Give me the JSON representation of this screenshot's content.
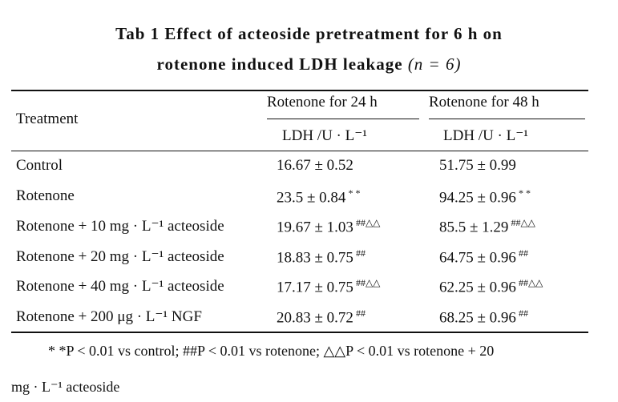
{
  "title": {
    "line1": "Tab 1   Effect of acteoside pretreatment for 6 h on",
    "line2_text": "rotenone induced LDH leakage",
    "line2_n": "(n = 6)"
  },
  "table": {
    "header": {
      "treatment": "Treatment",
      "col1": "Rotenone for 24 h",
      "col2": "Rotenone for 48 h",
      "unit1": "LDH /U · L⁻¹",
      "unit2": "LDH /U · L⁻¹"
    },
    "rows": [
      {
        "label": "Control",
        "c1": "16.67 ± 0.52",
        "m1": "",
        "c2": "51.75 ± 0.99",
        "m2": ""
      },
      {
        "label": "Rotenone",
        "c1": "23.5 ± 0.84",
        "m1": "* *",
        "c2": "94.25 ± 0.96",
        "m2": "* *"
      },
      {
        "label": "Rotenone + 10 mg · L⁻¹ acteoside",
        "c1": "19.67 ± 1.03",
        "m1": "##△△",
        "c2": "85.5 ± 1.29",
        "m2": "##△△"
      },
      {
        "label": "Rotenone + 20 mg · L⁻¹ acteoside",
        "c1": "18.83 ± 0.75",
        "m1": "##",
        "c2": "64.75 ± 0.96",
        "m2": "##"
      },
      {
        "label": "Rotenone + 40 mg · L⁻¹ acteoside",
        "c1": "17.17 ± 0.75",
        "m1": "##△△",
        "c2": "62.25 ± 0.96",
        "m2": "##△△"
      },
      {
        "label": "Rotenone + 200 μg · L⁻¹ NGF",
        "c1": "20.83 ± 0.72",
        "m1": "##",
        "c2": "68.25 ± 0.96",
        "m2": "##"
      }
    ]
  },
  "footnote": {
    "line1": "* *P < 0.01 vs control; ##P < 0.01 vs rotenone; △△P < 0.01 vs rotenone + 20",
    "line2": "mg · L⁻¹ acteoside"
  }
}
